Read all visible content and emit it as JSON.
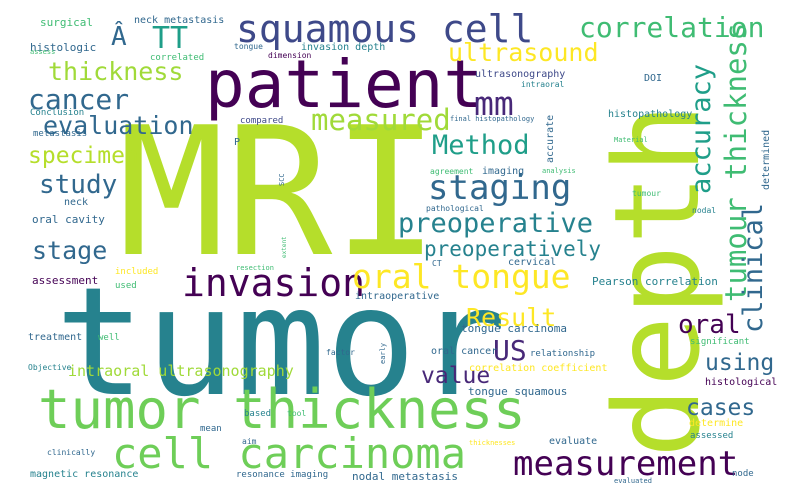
{
  "palette": {
    "lime": "#b5de2b",
    "yellow_green": "#a0da39",
    "green": "#6ece58",
    "teal_green": "#3fbc73",
    "teal": "#1f9e89",
    "blue_teal": "#26828e",
    "blue": "#31688e",
    "indigo": "#3e4989",
    "purple": "#482878",
    "dark_purple": "#440154",
    "yellow": "#fde725"
  },
  "words": [
    {
      "text": "MRI",
      "color": "#b5de2b"
    },
    {
      "text": "tumor",
      "color": "#26828e"
    },
    {
      "text": "depth",
      "color": "#b5de2b"
    },
    {
      "text": "patient",
      "color": "#440154"
    },
    {
      "text": "tumor thickness",
      "color": "#6ece58"
    },
    {
      "text": "squamous cell",
      "color": "#3e4989"
    },
    {
      "text": "cell carcinoma",
      "color": "#6ece58"
    },
    {
      "text": "measurement",
      "color": "#440154"
    },
    {
      "text": "invasion",
      "color": "#440154"
    },
    {
      "text": "staging",
      "color": "#31688e"
    },
    {
      "text": "oral tongue",
      "color": "#fde725"
    },
    {
      "text": "correlation",
      "color": "#3fbc73"
    },
    {
      "text": "thickness",
      "color": "#a0da39"
    },
    {
      "text": "Â",
      "color": "#31688e"
    },
    {
      "text": "TT",
      "color": "#1f9e89"
    },
    {
      "text": "ultrasound",
      "color": "#fde725"
    },
    {
      "text": "cancer",
      "color": "#31688e"
    },
    {
      "text": "mm",
      "color": "#482878"
    },
    {
      "text": "measured",
      "color": "#a0da39"
    },
    {
      "text": "evaluation",
      "color": "#31688e"
    },
    {
      "text": "Method",
      "color": "#1f9e89"
    },
    {
      "text": "specimen",
      "color": "#b5de2b"
    },
    {
      "text": "study",
      "color": "#31688e"
    },
    {
      "text": "preoperative",
      "color": "#26828e"
    },
    {
      "text": "stage",
      "color": "#31688e"
    },
    {
      "text": "preoperatively",
      "color": "#26828e"
    },
    {
      "text": "accuracy",
      "color": "#1f9e89"
    },
    {
      "text": "tumour thickness",
      "color": "#3fbc73"
    },
    {
      "text": "clinical",
      "color": "#31688e"
    },
    {
      "text": "oral",
      "color": "#440154"
    },
    {
      "text": "Result",
      "color": "#fde725"
    },
    {
      "text": "US",
      "color": "#482878"
    },
    {
      "text": "value",
      "color": "#482878"
    },
    {
      "text": "using",
      "color": "#31688e"
    },
    {
      "text": "cases",
      "color": "#31688e"
    },
    {
      "text": "intraoral ultrasonography",
      "color": "#a0da39"
    },
    {
      "text": "surgical",
      "color": "#3fbc73"
    },
    {
      "text": "neck metastasis",
      "color": "#31688e"
    },
    {
      "text": "histologic",
      "color": "#31688e"
    },
    {
      "text": "correlated",
      "color": "#3fbc73"
    },
    {
      "text": "tongue",
      "color": "#31688e"
    },
    {
      "text": "dimension",
      "color": "#440154"
    },
    {
      "text": "invasion depth",
      "color": "#26828e"
    },
    {
      "text": "assess",
      "color": "#3fbc73"
    },
    {
      "text": "Conclusion",
      "color": "#26828e"
    },
    {
      "text": "metastasis",
      "color": "#31688e"
    },
    {
      "text": "ultrasonography",
      "color": "#3e4989"
    },
    {
      "text": "intraoral",
      "color": "#26828e"
    },
    {
      "text": "DOI",
      "color": "#31688e"
    },
    {
      "text": "histopathology",
      "color": "#26828e"
    },
    {
      "text": "final histopathology",
      "color": "#31688e"
    },
    {
      "text": "compared",
      "color": "#3e4989"
    },
    {
      "text": "accurate",
      "color": "#31688e"
    },
    {
      "text": "Material",
      "color": "#3fbc73"
    },
    {
      "text": "P",
      "color": "#31688e"
    },
    {
      "text": "determined",
      "color": "#31688e"
    },
    {
      "text": "neck",
      "color": "#31688e"
    },
    {
      "text": "oral cavity",
      "color": "#31688e"
    },
    {
      "text": "agreement",
      "color": "#3fbc73"
    },
    {
      "text": "imaging",
      "color": "#31688e"
    },
    {
      "text": "analysis",
      "color": "#3fbc73"
    },
    {
      "text": "tumour",
      "color": "#3fbc73"
    },
    {
      "text": "SCC",
      "color": "#31688e"
    },
    {
      "text": "pathological",
      "color": "#31688e"
    },
    {
      "text": "nodal",
      "color": "#26828e"
    },
    {
      "text": "extent",
      "color": "#3fbc73"
    },
    {
      "text": "CT",
      "color": "#31688e"
    },
    {
      "text": "cervical",
      "color": "#31688e"
    },
    {
      "text": "assessment",
      "color": "#440154"
    },
    {
      "text": "included",
      "color": "#fde725"
    },
    {
      "text": "used",
      "color": "#3fbc73"
    },
    {
      "text": "resection",
      "color": "#3fbc73"
    },
    {
      "text": "intraoperative",
      "color": "#31688e"
    },
    {
      "text": "Pearson correlation",
      "color": "#26828e"
    },
    {
      "text": "treatment",
      "color": "#31688e"
    },
    {
      "text": "well",
      "color": "#3fbc73"
    },
    {
      "text": "tongue carcinoma",
      "color": "#31688e"
    },
    {
      "text": "significant",
      "color": "#3fbc73"
    },
    {
      "text": "relationship",
      "color": "#31688e"
    },
    {
      "text": "oral cancer",
      "color": "#31688e"
    },
    {
      "text": "factor",
      "color": "#31688e"
    },
    {
      "text": "early",
      "color": "#31688e"
    },
    {
      "text": "Objective",
      "color": "#26828e"
    },
    {
      "text": "correlation coefficient",
      "color": "#fde725"
    },
    {
      "text": "tongue squamous",
      "color": "#31688e"
    },
    {
      "text": "histological",
      "color": "#440154"
    },
    {
      "text": "based",
      "color": "#26828e"
    },
    {
      "text": "tool",
      "color": "#3fbc73"
    },
    {
      "text": "mean",
      "color": "#31688e"
    },
    {
      "text": "determine",
      "color": "#fde725"
    },
    {
      "text": "assessed",
      "color": "#26828e"
    },
    {
      "text": "aim",
      "color": "#31688e"
    },
    {
      "text": "thicknesses",
      "color": "#fde725"
    },
    {
      "text": "evaluate",
      "color": "#31688e"
    },
    {
      "text": "clinically",
      "color": "#31688e"
    },
    {
      "text": "magnetic resonance",
      "color": "#26828e"
    },
    {
      "text": "resonance imaging",
      "color": "#31688e"
    },
    {
      "text": "nodal metastasis",
      "color": "#31688e"
    },
    {
      "text": "node",
      "color": "#31688e"
    },
    {
      "text": "evaluated",
      "color": "#31688e"
    }
  ]
}
